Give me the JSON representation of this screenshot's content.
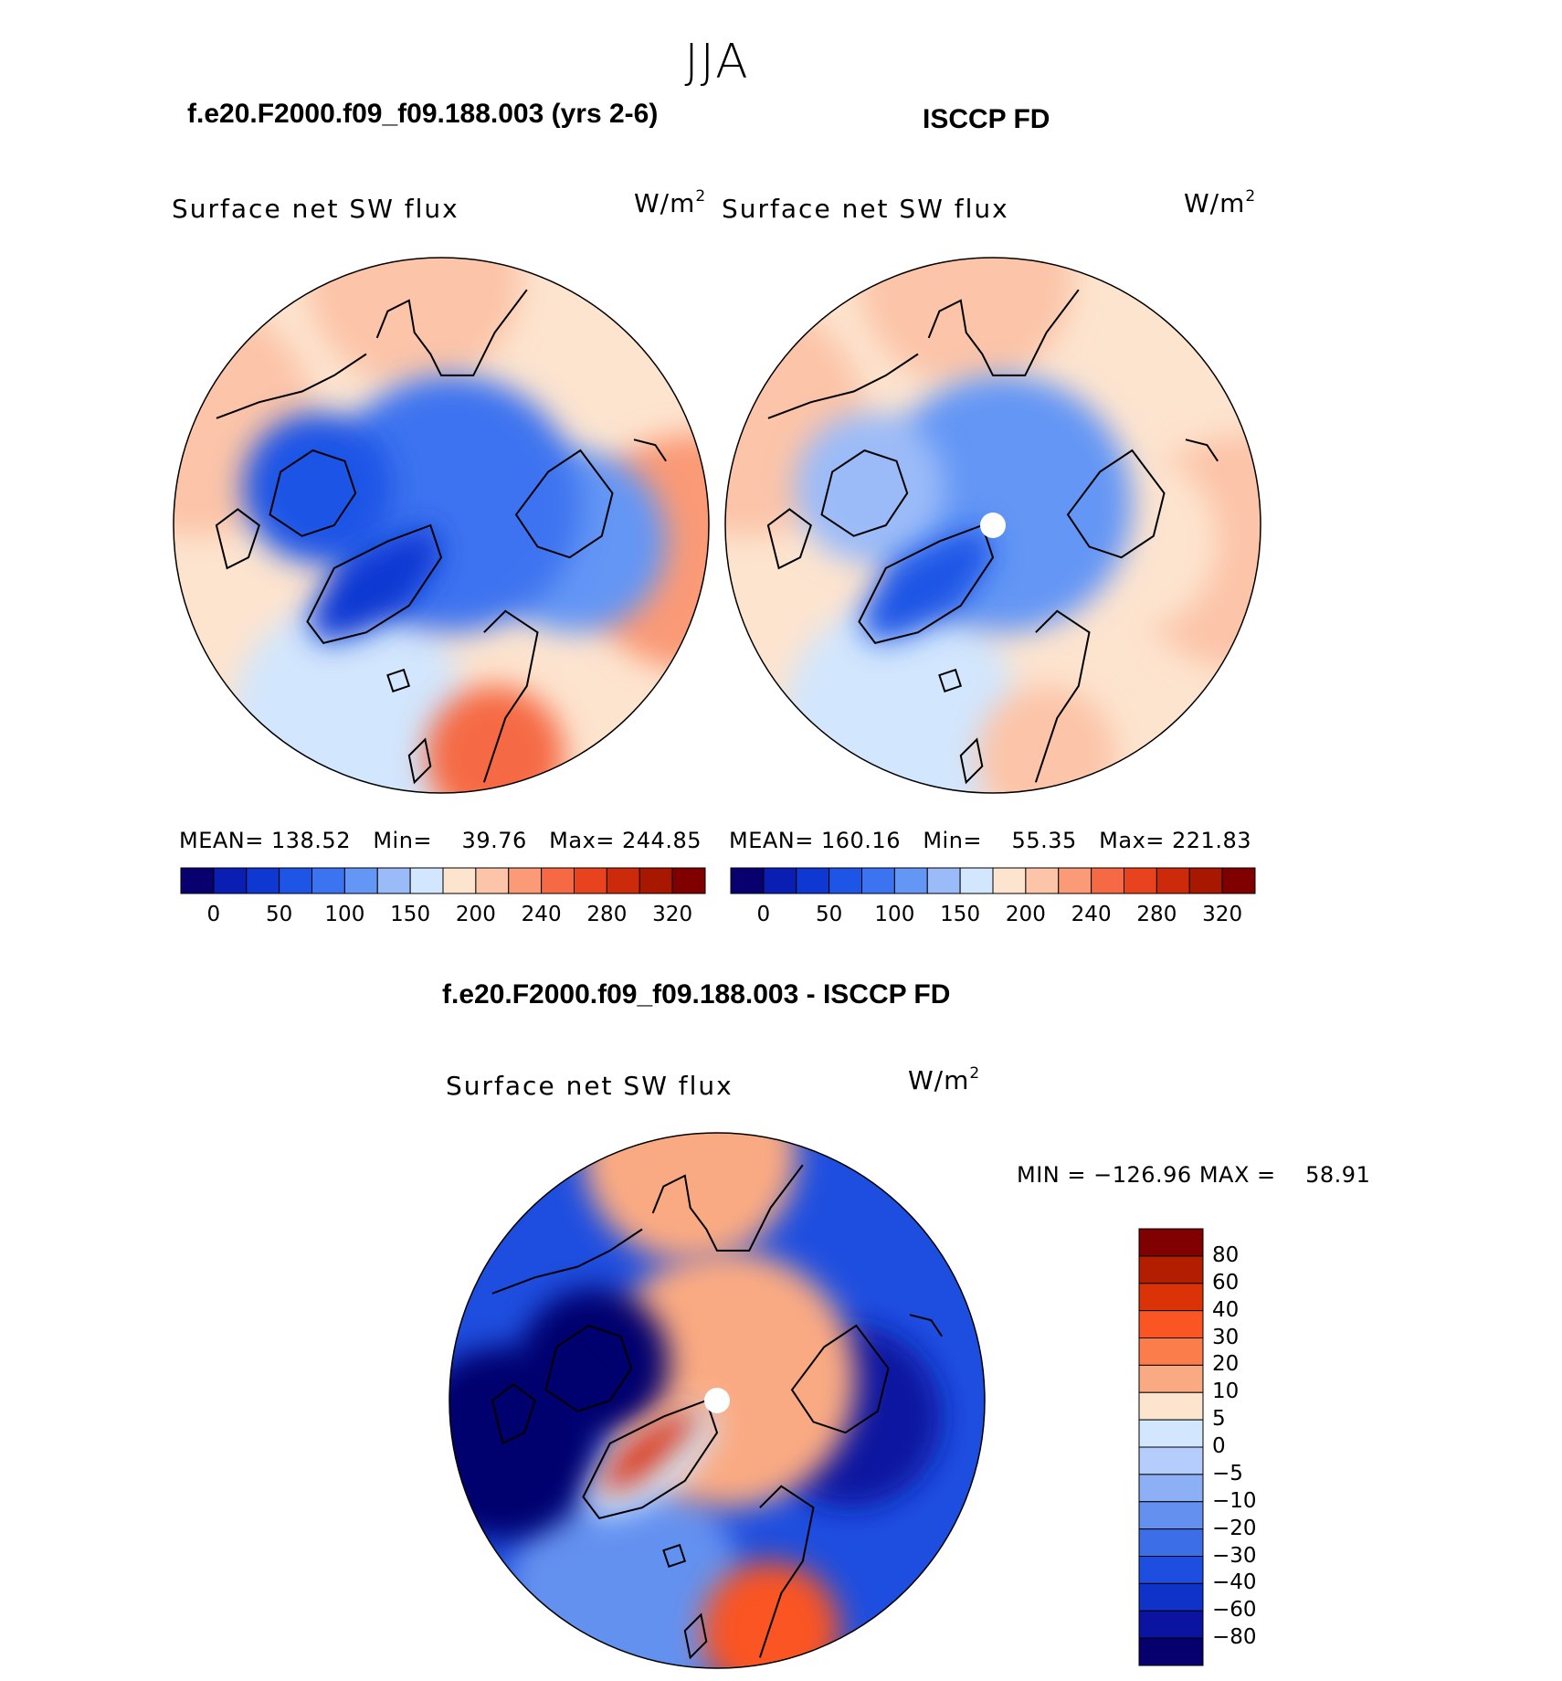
{
  "season": "JJA",
  "panels": [
    {
      "title": "f.e20.F2000.f09_f09.188.003 (yrs 2-6)",
      "variable": "Surface net SW flux",
      "units_base": "W/m",
      "units_exp": "2",
      "stats_text": "MEAN= 138.52   Min=    39.76   Max= 244.85",
      "pole_mask": false
    },
    {
      "title": "ISCCP FD",
      "variable": "Surface net SW flux",
      "units_base": "W/m",
      "units_exp": "2",
      "stats_text": "MEAN= 160.16   Min=    55.35   Max= 221.83",
      "pole_mask": true
    }
  ],
  "diff_panel": {
    "title": "f.e20.F2000.f09_f09.188.003 - ISCCP FD",
    "variable": "Surface net SW flux",
    "units_base": "W/m",
    "units_exp": "2",
    "stats_text": "MIN = −126.96 MAX =    58.91",
    "pole_mask": true
  },
  "colors": {
    "abs_scale": [
      "#08006e",
      "#0a1eb4",
      "#0f37d2",
      "#1e55e6",
      "#3c73f0",
      "#6496f5",
      "#9bbbf8",
      "#d2e6fd",
      "#fde4cf",
      "#fcc4a8",
      "#fa9a76",
      "#f56a44",
      "#e8421e",
      "#cc2a0a",
      "#a81800",
      "#800000"
    ],
    "diff_scale": [
      "#800000",
      "#b41e00",
      "#dc3208",
      "#fa5523",
      "#fa7d4b",
      "#faaa82",
      "#fde4cf",
      "#d2e6fd",
      "#b4cdfa",
      "#8caff5",
      "#6491f0",
      "#3c6ee8",
      "#1e4ee0",
      "#0f32c8",
      "#0a14a0",
      "#05006e"
    ]
  },
  "chart_data": [
    {
      "type": "heatmap",
      "projection": "north polar stereographic",
      "title": "f.e20.F2000.f09_f09.188.003 (yrs 2-6)",
      "variable": "Surface net SW flux",
      "units": "W/m2",
      "mean": 138.52,
      "min": 39.76,
      "max": 244.85,
      "colorbar_ticks": [
        "0",
        "50",
        "100",
        "150",
        "200",
        "240",
        "280",
        "320"
      ],
      "region_values": {
        "central_arctic": 90,
        "greenland": 40,
        "canadian_archipelago": 60,
        "siberia": 110,
        "north_atlantic": 160,
        "north_pacific": 200,
        "scandinavia": 240,
        "eurasia_south": 230,
        "north_america_south": 200
      }
    },
    {
      "type": "heatmap",
      "projection": "north polar stereographic",
      "title": "ISCCP FD",
      "variable": "Surface net SW flux",
      "units": "W/m2",
      "mean": 160.16,
      "min": 55.35,
      "max": 221.83,
      "colorbar_ticks": [
        "0",
        "50",
        "100",
        "150",
        "200",
        "240",
        "280",
        "320"
      ],
      "region_values": {
        "central_arctic": 110,
        "greenland": 60,
        "canadian_archipelago": 130,
        "siberia": 180,
        "north_atlantic": 150,
        "north_pacific": 210,
        "scandinavia": 210,
        "eurasia_south": 215,
        "north_america_south": 210
      }
    },
    {
      "type": "heatmap",
      "projection": "north polar stereographic",
      "title": "f.e20.F2000.f09_f09.188.003 - ISCCP FD",
      "variable": "Surface net SW flux",
      "units": "W/m2",
      "min": -126.96,
      "max": 58.91,
      "colorbar_ticks": [
        "80",
        "60",
        "40",
        "30",
        "20",
        "10",
        "5",
        "0",
        "−5",
        "−10",
        "−20",
        "−30",
        "−40",
        "−60",
        "−80"
      ],
      "region_values": {
        "central_arctic": 10,
        "greenland": 0,
        "greenland_coast": 40,
        "canadian_archipelago": -90,
        "north_america": -100,
        "siberia": -70,
        "north_atlantic": -20,
        "north_pacific": 10,
        "scandinavia": 30
      }
    }
  ]
}
